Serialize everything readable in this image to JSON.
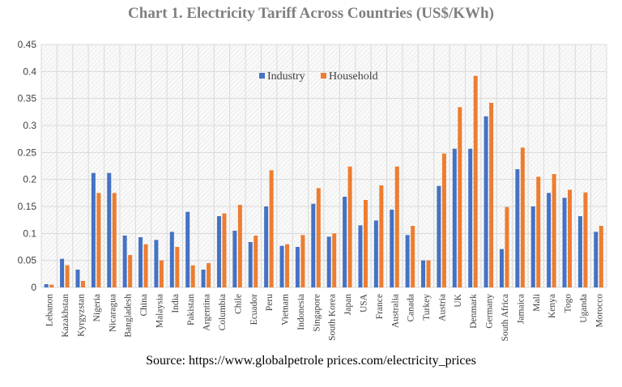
{
  "chart_data": {
    "type": "bar",
    "title": "Chart 1. Electricity Tariff Across Countries (US$/KWh)",
    "source": "Source: https://www.globalpetrole prices.com/electricity_prices",
    "categories": [
      "Lebanon",
      "Kazakhstan",
      "Kyrgyzstan",
      "Nigeria",
      "Nicaragua",
      "Bangladesh",
      "China",
      "Malaysia",
      "India",
      "Pakistan",
      "Argentina",
      "Columbia",
      "Chile",
      "Ecuador",
      "Peru",
      "Vietnam",
      "Indonesia",
      "Singapore",
      "South Korea",
      "Japan",
      "USA",
      "France",
      "Australia",
      "Canada",
      "Turkey",
      "Austria",
      "UK",
      "Denmark",
      "Germany",
      "South Africa",
      "Jamaica",
      "Mali",
      "Kenya",
      "Togo",
      "Uganda",
      "Morocco"
    ],
    "series": [
      {
        "name": "Industry",
        "color": "#4472c4",
        "values": [
          0.006,
          0.053,
          0.033,
          0.212,
          0.212,
          0.096,
          0.093,
          0.088,
          0.103,
          0.14,
          0.033,
          0.132,
          0.105,
          0.084,
          0.15,
          0.077,
          0.075,
          0.155,
          0.094,
          0.168,
          0.115,
          0.124,
          0.144,
          0.097,
          0.05,
          0.188,
          0.257,
          0.257,
          0.317,
          0.071,
          0.219,
          0.15,
          0.175,
          0.166,
          0.132,
          0.103
        ]
      },
      {
        "name": "Household",
        "color": "#ed7d31",
        "values": [
          0.005,
          0.041,
          0.012,
          0.175,
          0.175,
          0.06,
          0.08,
          0.05,
          0.075,
          0.041,
          0.045,
          0.137,
          0.153,
          0.096,
          0.217,
          0.08,
          0.097,
          0.184,
          0.1,
          0.224,
          0.162,
          0.189,
          0.224,
          0.114,
          0.05,
          0.248,
          0.334,
          0.392,
          0.342,
          0.149,
          0.259,
          0.205,
          0.21,
          0.181,
          0.176,
          0.114
        ]
      }
    ],
    "ylim": [
      0,
      0.45
    ],
    "yticks": [
      "0",
      "0.05",
      "0.1",
      "0.15",
      "0.2",
      "0.25",
      "0.3",
      "0.35",
      "0.4",
      "0.45"
    ],
    "grid": true,
    "legend": "top-center"
  }
}
